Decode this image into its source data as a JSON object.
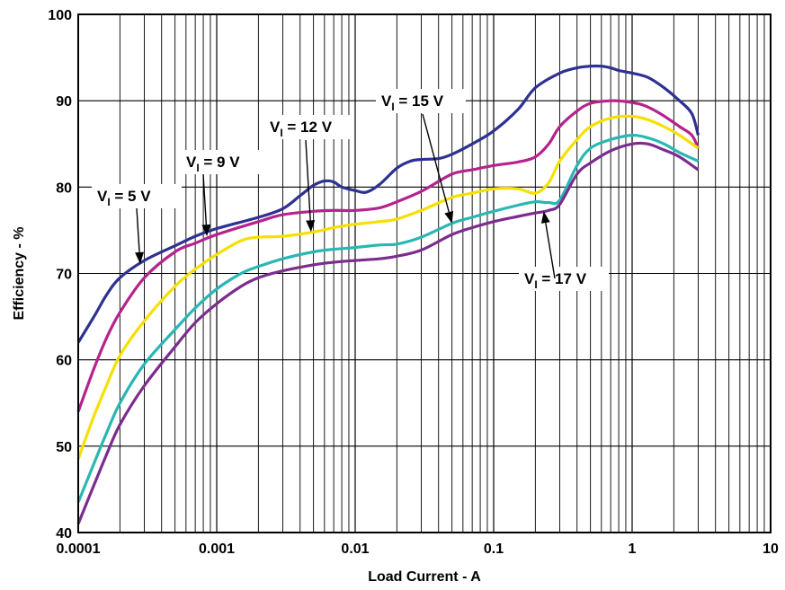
{
  "chart_data": {
    "type": "line",
    "title": "",
    "xlabel": "Load Current - A",
    "ylabel": "Efficiency - %",
    "xscale": "log",
    "xlim": [
      0.0001,
      10
    ],
    "ylim": [
      40,
      100
    ],
    "grid": true,
    "x_ticks": [
      "0.0001",
      "0.001",
      "0.01",
      "0.1",
      "1",
      "10"
    ],
    "y_ticks": [
      "40",
      "50",
      "60",
      "70",
      "80",
      "90",
      "100"
    ],
    "series": [
      {
        "name": "VI = 5 V",
        "color": "#2e3192",
        "points": [
          [
            0.0001,
            62
          ],
          [
            0.00013,
            65
          ],
          [
            0.00016,
            67.5
          ],
          [
            0.0002,
            69.5
          ],
          [
            0.0003,
            71.5
          ],
          [
            0.0005,
            73.2
          ],
          [
            0.0007,
            74.3
          ],
          [
            0.001,
            75.2
          ],
          [
            0.002,
            76.5
          ],
          [
            0.003,
            77.5
          ],
          [
            0.004,
            79
          ],
          [
            0.005,
            80.2
          ],
          [
            0.006,
            80.7
          ],
          [
            0.007,
            80.6
          ],
          [
            0.008,
            80
          ],
          [
            0.01,
            79.6
          ],
          [
            0.012,
            79.4
          ],
          [
            0.015,
            80.3
          ],
          [
            0.02,
            82.2
          ],
          [
            0.025,
            83
          ],
          [
            0.03,
            83.2
          ],
          [
            0.04,
            83.3
          ],
          [
            0.05,
            83.8
          ],
          [
            0.07,
            85
          ],
          [
            0.1,
            86.5
          ],
          [
            0.15,
            89
          ],
          [
            0.2,
            91.5
          ],
          [
            0.3,
            93.2
          ],
          [
            0.4,
            93.8
          ],
          [
            0.5,
            94
          ],
          [
            0.6,
            94
          ],
          [
            0.7,
            93.8
          ],
          [
            0.8,
            93.5
          ],
          [
            1,
            93.2
          ],
          [
            1.3,
            92.7
          ],
          [
            1.7,
            91.5
          ],
          [
            2.2,
            90
          ],
          [
            2.7,
            88.5
          ],
          [
            3,
            86
          ]
        ]
      },
      {
        "name": "VI = 9 V",
        "color": "#b5238c",
        "points": [
          [
            0.0001,
            54
          ],
          [
            0.00013,
            59
          ],
          [
            0.00016,
            62.5
          ],
          [
            0.0002,
            65.5
          ],
          [
            0.0003,
            69.5
          ],
          [
            0.0005,
            72.5
          ],
          [
            0.0007,
            73.5
          ],
          [
            0.001,
            74.5
          ],
          [
            0.002,
            76
          ],
          [
            0.003,
            76.8
          ],
          [
            0.005,
            77.2
          ],
          [
            0.007,
            77.3
          ],
          [
            0.01,
            77.3
          ],
          [
            0.015,
            77.6
          ],
          [
            0.02,
            78.3
          ],
          [
            0.03,
            79.5
          ],
          [
            0.05,
            81.5
          ],
          [
            0.07,
            82
          ],
          [
            0.1,
            82.5
          ],
          [
            0.15,
            82.9
          ],
          [
            0.2,
            83.5
          ],
          [
            0.25,
            85
          ],
          [
            0.3,
            87
          ],
          [
            0.4,
            88.8
          ],
          [
            0.5,
            89.7
          ],
          [
            0.7,
            90
          ],
          [
            0.9,
            89.9
          ],
          [
            1.2,
            89.5
          ],
          [
            1.6,
            88.5
          ],
          [
            2.2,
            87
          ],
          [
            2.7,
            86
          ],
          [
            3,
            84.5
          ]
        ]
      },
      {
        "name": "VI = 12 V",
        "color": "#f5e000",
        "points": [
          [
            0.0001,
            48.5
          ],
          [
            0.00013,
            53.5
          ],
          [
            0.00016,
            57
          ],
          [
            0.0002,
            60.5
          ],
          [
            0.0003,
            64.5
          ],
          [
            0.0005,
            68.5
          ],
          [
            0.0007,
            70.5
          ],
          [
            0.001,
            72.2
          ],
          [
            0.0015,
            73.8
          ],
          [
            0.002,
            74.2
          ],
          [
            0.003,
            74.3
          ],
          [
            0.005,
            74.8
          ],
          [
            0.007,
            75.3
          ],
          [
            0.01,
            75.7
          ],
          [
            0.015,
            76
          ],
          [
            0.02,
            76.3
          ],
          [
            0.03,
            77.3
          ],
          [
            0.05,
            78.8
          ],
          [
            0.07,
            79.3
          ],
          [
            0.1,
            79.8
          ],
          [
            0.15,
            79.8
          ],
          [
            0.2,
            79.3
          ],
          [
            0.25,
            80.5
          ],
          [
            0.3,
            83
          ],
          [
            0.4,
            85.5
          ],
          [
            0.5,
            87
          ],
          [
            0.7,
            88
          ],
          [
            1,
            88.2
          ],
          [
            1.3,
            87.8
          ],
          [
            1.7,
            87
          ],
          [
            2.2,
            86
          ],
          [
            3,
            84.5
          ]
        ]
      },
      {
        "name": "VI = 15 V",
        "color": "#2ab7b3",
        "points": [
          [
            0.0001,
            43.5
          ],
          [
            0.00013,
            48
          ],
          [
            0.00016,
            51.5
          ],
          [
            0.0002,
            55
          ],
          [
            0.0003,
            59.5
          ],
          [
            0.0005,
            63.5
          ],
          [
            0.0007,
            66
          ],
          [
            0.001,
            68.2
          ],
          [
            0.0015,
            70
          ],
          [
            0.002,
            70.8
          ],
          [
            0.003,
            71.7
          ],
          [
            0.005,
            72.5
          ],
          [
            0.007,
            72.8
          ],
          [
            0.01,
            73
          ],
          [
            0.015,
            73.3
          ],
          [
            0.02,
            73.4
          ],
          [
            0.03,
            74.2
          ],
          [
            0.05,
            75.8
          ],
          [
            0.07,
            76.5
          ],
          [
            0.1,
            77.2
          ],
          [
            0.15,
            77.9
          ],
          [
            0.2,
            78.3
          ],
          [
            0.25,
            78.2
          ],
          [
            0.3,
            78.5
          ],
          [
            0.4,
            82.5
          ],
          [
            0.5,
            84.5
          ],
          [
            0.7,
            85.5
          ],
          [
            1,
            86
          ],
          [
            1.3,
            85.7
          ],
          [
            1.7,
            85
          ],
          [
            2.2,
            84
          ],
          [
            3,
            83
          ]
        ]
      },
      {
        "name": "VI = 17 V",
        "color": "#7b2d8e",
        "points": [
          [
            0.0001,
            41
          ],
          [
            0.00013,
            45.5
          ],
          [
            0.00016,
            49
          ],
          [
            0.0002,
            52.5
          ],
          [
            0.0003,
            57
          ],
          [
            0.0005,
            61.5
          ],
          [
            0.0007,
            64.3
          ],
          [
            0.001,
            66.5
          ],
          [
            0.0015,
            68.5
          ],
          [
            0.002,
            69.5
          ],
          [
            0.003,
            70.3
          ],
          [
            0.005,
            71
          ],
          [
            0.007,
            71.3
          ],
          [
            0.01,
            71.5
          ],
          [
            0.015,
            71.7
          ],
          [
            0.02,
            72
          ],
          [
            0.03,
            72.7
          ],
          [
            0.05,
            74.5
          ],
          [
            0.07,
            75.3
          ],
          [
            0.1,
            76
          ],
          [
            0.15,
            76.6
          ],
          [
            0.2,
            77
          ],
          [
            0.25,
            77.3
          ],
          [
            0.3,
            78
          ],
          [
            0.4,
            81.5
          ],
          [
            0.5,
            82.8
          ],
          [
            0.7,
            84.2
          ],
          [
            1,
            85
          ],
          [
            1.3,
            85
          ],
          [
            1.7,
            84.3
          ],
          [
            2.2,
            83.5
          ],
          [
            3,
            82
          ]
        ]
      }
    ],
    "annotations": [
      {
        "prefix": "V",
        "sub": "I",
        "suffix": " = 5 V",
        "series": "VI = 5 V",
        "target": [
          0.00028,
          71.1
        ]
      },
      {
        "prefix": "V",
        "sub": "I",
        "suffix": " = 9 V",
        "series": "VI = 9 V",
        "target": [
          0.00085,
          74.3
        ]
      },
      {
        "prefix": "V",
        "sub": "I",
        "suffix": " = 12 V",
        "series": "VI = 12 V",
        "target": [
          0.0048,
          74.8
        ]
      },
      {
        "prefix": "V",
        "sub": "I",
        "suffix": " = 15 V",
        "series": "VI = 15 V",
        "target": [
          0.05,
          75.8
        ]
      },
      {
        "prefix": "V",
        "sub": "I",
        "suffix": " = 17 V",
        "series": "VI = 17 V",
        "target": [
          0.23,
          77.2
        ]
      }
    ]
  }
}
